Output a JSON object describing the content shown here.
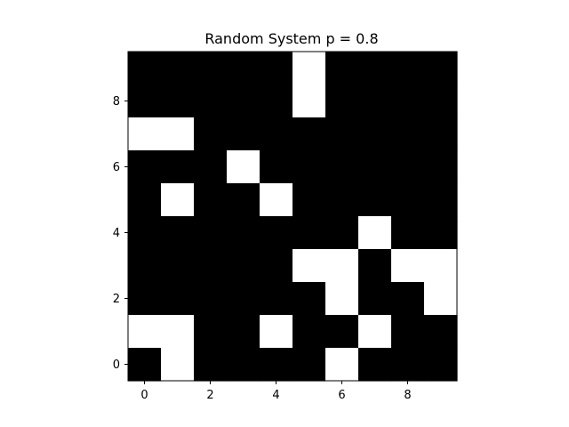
{
  "chart_data": {
    "type": "heatmap",
    "title": "Random System p = 0.8",
    "xlabel": "",
    "ylabel": "",
    "colormap": {
      "0": "#000000",
      "1": "#ffffff"
    },
    "grid": false,
    "xlim": [
      -0.5,
      9.5
    ],
    "ylim": [
      -0.5,
      9.5
    ],
    "x_ticks": [
      "0",
      "2",
      "4",
      "6",
      "8"
    ],
    "y_ticks": [
      "0",
      "2",
      "4",
      "6",
      "8"
    ],
    "rows_top_to_bottom": [
      [
        0,
        0,
        0,
        0,
        0,
        1,
        0,
        0,
        0,
        0
      ],
      [
        0,
        0,
        0,
        0,
        0,
        1,
        0,
        0,
        0,
        0
      ],
      [
        1,
        1,
        0,
        0,
        0,
        0,
        0,
        0,
        0,
        0
      ],
      [
        0,
        0,
        0,
        1,
        0,
        0,
        0,
        0,
        0,
        0
      ],
      [
        0,
        1,
        0,
        0,
        1,
        0,
        0,
        0,
        0,
        0
      ],
      [
        0,
        0,
        0,
        0,
        0,
        0,
        0,
        1,
        0,
        0
      ],
      [
        0,
        0,
        0,
        0,
        0,
        1,
        1,
        0,
        1,
        1
      ],
      [
        0,
        0,
        0,
        0,
        0,
        0,
        1,
        0,
        0,
        1
      ],
      [
        1,
        1,
        0,
        0,
        1,
        0,
        0,
        1,
        0,
        0
      ],
      [
        0,
        1,
        0,
        0,
        0,
        0,
        1,
        0,
        0,
        0
      ]
    ]
  }
}
